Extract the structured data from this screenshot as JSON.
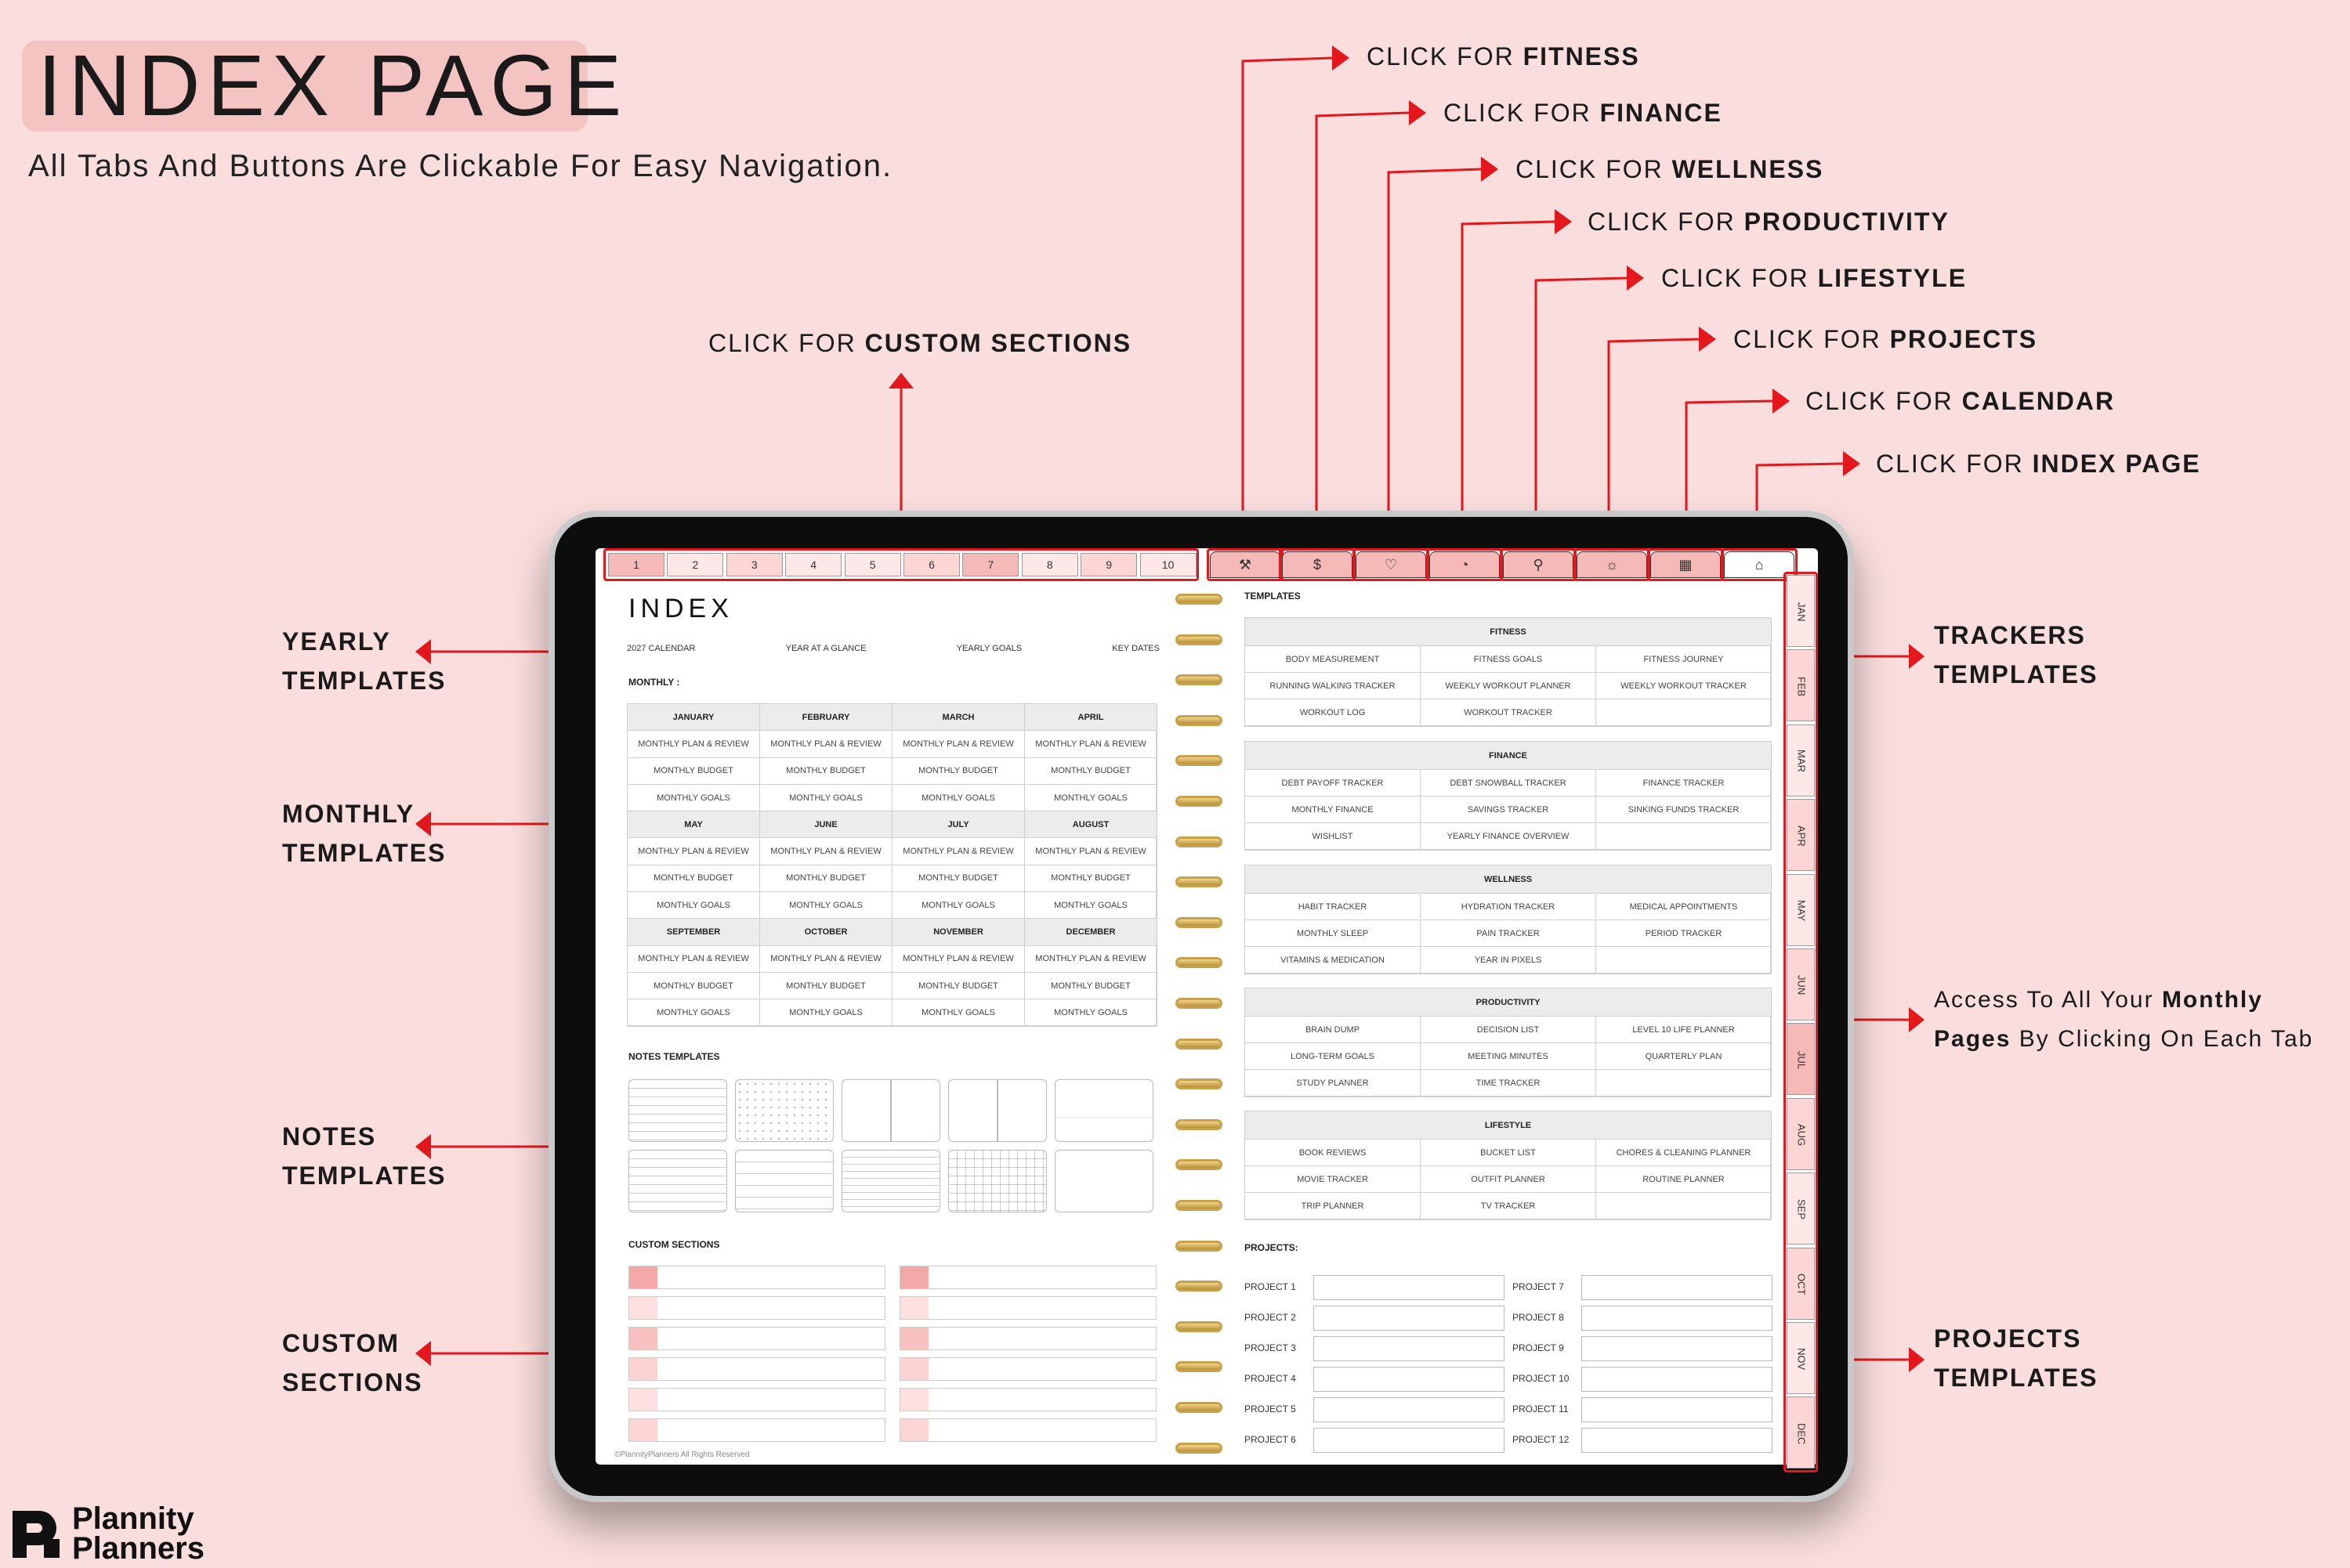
{
  "header": {
    "title": "INDEX PAGE",
    "subtitle": "All Tabs And Buttons Are Clickable For Easy Navigation."
  },
  "callouts": {
    "fitness": {
      "prefix": "CLICK FOR ",
      "bold": "FITNESS"
    },
    "finance": {
      "prefix": "CLICK FOR ",
      "bold": "FINANCE"
    },
    "wellness": {
      "prefix": "CLICK FOR ",
      "bold": "WELLNESS"
    },
    "productivity": {
      "prefix": "CLICK FOR ",
      "bold": "PRODUCTIVITY"
    },
    "lifestyle": {
      "prefix": "CLICK FOR ",
      "bold": "LIFESTYLE"
    },
    "projects": {
      "prefix": "CLICK FOR ",
      "bold": "PROJECTS"
    },
    "calendar": {
      "prefix": "CLICK FOR ",
      "bold": "CALENDAR"
    },
    "index": {
      "prefix": "CLICK FOR ",
      "bold": "INDEX PAGE"
    },
    "custom_sections": {
      "prefix": "CLICK FOR ",
      "bold": "CUSTOM SECTIONS"
    }
  },
  "side_labels": {
    "yearly": [
      "YEARLY",
      "TEMPLATES"
    ],
    "monthly": [
      "MONTHLY",
      "TEMPLATES"
    ],
    "notes": [
      "NOTES",
      "TEMPLATES"
    ],
    "custom": [
      "CUSTOM",
      "SECTIONS"
    ],
    "trackers": [
      "TRACKERS",
      "TEMPLATES"
    ],
    "projects": [
      "PROJECTS",
      "TEMPLATES"
    ],
    "access_line1_prefix": "Access To All Your ",
    "access_line1_bold": "Monthly",
    "access_line2_bold": "Pages",
    "access_line2_suffix": " By Clicking On Each Tab"
  },
  "tabs": {
    "numbers": [
      "1",
      "2",
      "3",
      "4",
      "5",
      "6",
      "7",
      "8",
      "9",
      "10"
    ],
    "months": [
      "JAN",
      "FEB",
      "MAR",
      "APR",
      "MAY",
      "JUN",
      "JUL",
      "AUG",
      "SEP",
      "OCT",
      "NOV",
      "DEC"
    ],
    "icons": [
      "dumbbell-icon",
      "dollar-icon",
      "heart-icon",
      "gauge-icon",
      "person-icon",
      "sun-icon",
      "calendar-icon",
      "home-icon"
    ]
  },
  "planner": {
    "title": "INDEX",
    "yearly_links": [
      "2027 CALENDAR",
      "YEAR AT A GLANCE",
      "YEARLY GOALS",
      "KEY DATES"
    ],
    "monthly_label": "MONTHLY :",
    "month_groups": [
      [
        "JANUARY",
        "FEBRUARY",
        "MARCH",
        "APRIL"
      ],
      [
        "MAY",
        "JUNE",
        "JULY",
        "AUGUST"
      ],
      [
        "SEPTEMBER",
        "OCTOBER",
        "NOVEMBER",
        "DECEMBER"
      ]
    ],
    "month_rows": [
      "MONTHLY PLAN & REVIEW",
      "MONTHLY BUDGET",
      "MONTHLY GOALS"
    ],
    "notes_label": "NOTES TEMPLATES",
    "custom_label": "CUSTOM SECTIONS",
    "copyright": "©PlannityPlanners All Rights Reserved",
    "templates_label": "TEMPLATES",
    "sections": [
      {
        "title": "FITNESS",
        "items": [
          "BODY MEASUREMENT",
          "FITNESS GOALS",
          "FITNESS JOURNEY",
          "RUNNING WALKING TRACKER",
          "WEEKLY WORKOUT PLANNER",
          "WEEKLY WORKOUT TRACKER",
          "WORKOUT LOG",
          "WORKOUT TRACKER",
          ""
        ]
      },
      {
        "title": "FINANCE",
        "items": [
          "DEBT PAYOFF TRACKER",
          "DEBT SNOWBALL TRACKER",
          "FINANCE TRACKER",
          "MONTHLY FINANCE",
          "SAVINGS TRACKER",
          "SINKING FUNDS TRACKER",
          "WISHLIST",
          "YEARLY FINANCE OVERVIEW",
          ""
        ]
      },
      {
        "title": "WELLNESS",
        "items": [
          "HABIT TRACKER",
          "HYDRATION TRACKER",
          "MEDICAL APPOINTMENTS",
          "MONTHLY SLEEP",
          "PAIN TRACKER",
          "PERIOD TRACKER",
          "VITAMINS & MEDICATION",
          "YEAR IN PIXELS",
          ""
        ]
      },
      {
        "title": "PRODUCTIVITY",
        "items": [
          "BRAIN DUMP",
          "DECISION LIST",
          "LEVEL 10 LIFE PLANNER",
          "LONG-TERM GOALS",
          "MEETING MINUTES",
          "QUARTERLY PLAN",
          "STUDY PLANNER",
          "TIME TRACKER",
          ""
        ]
      },
      {
        "title": "LIFESTYLE",
        "items": [
          "BOOK REVIEWS",
          "BUCKET LIST",
          "CHORES & CLEANING PLANNER",
          "MOVIE TRACKER",
          "OUTFIT PLANNER",
          "ROUTINE PLANNER",
          "TRIP PLANNER",
          "TV TRACKER",
          ""
        ]
      }
    ],
    "projects_label": "PROJECTS:",
    "projects_left": [
      "PROJECT 1",
      "PROJECT 2",
      "PROJECT 3",
      "PROJECT 4",
      "PROJECT 5",
      "PROJECT 6"
    ],
    "projects_right": [
      "PROJECT 7",
      "PROJECT 8",
      "PROJECT 9",
      "PROJECT 10",
      "PROJECT 11",
      "PROJECT 12"
    ]
  },
  "brand": {
    "logo_line1": "Plannity",
    "logo_line2": "Planners"
  },
  "colors": {
    "background": "#f9dedd",
    "accent_red": "#e3171c",
    "tab_pink": "#f5b9b7"
  }
}
